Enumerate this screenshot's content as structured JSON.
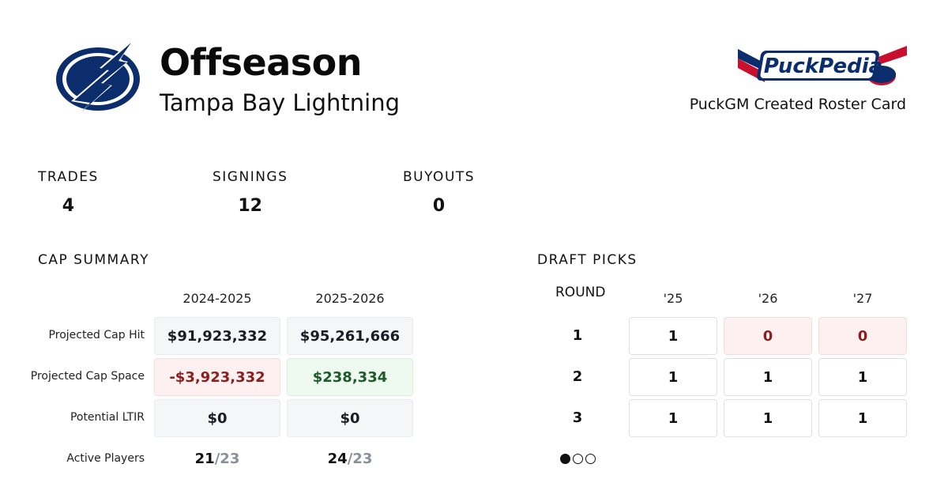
{
  "header": {
    "title": "Offseason",
    "team": "Tampa Bay Lightning",
    "brand_caption": "PuckGM Created Roster Card",
    "brand_logo_text": "PuckPedia",
    "team_logo_icon": "lightning-bolt-logo-icon",
    "team_color": "#0b2d6c",
    "brand_red": "#c8102e"
  },
  "stats": {
    "trades_label": "TRADES",
    "trades_value": "4",
    "signings_label": "SIGNINGS",
    "signings_value": "12",
    "buyouts_label": "BUYOUTS",
    "buyouts_value": "0"
  },
  "cap_summary": {
    "title": "CAP SUMMARY",
    "seasons": [
      "2024-2025",
      "2025-2026"
    ],
    "rows": [
      {
        "label": "Projected Cap Hit",
        "values": [
          "$91,923,332",
          "$95,261,666"
        ],
        "status": [
          "neutral",
          "neutral"
        ]
      },
      {
        "label": "Projected Cap Space",
        "values": [
          "-$3,923,332",
          "$238,334"
        ],
        "status": [
          "negative",
          "positive"
        ]
      },
      {
        "label": "Potential LTIR",
        "values": [
          "$0",
          "$0"
        ],
        "status": [
          "neutral",
          "neutral"
        ]
      }
    ],
    "active_players": {
      "label": "Active Players",
      "values": [
        {
          "count": "21",
          "max": "/23"
        },
        {
          "count": "24",
          "max": "/23"
        }
      ]
    }
  },
  "draft_picks": {
    "title": "DRAFT PICKS",
    "round_header": "ROUND",
    "years": [
      "'25",
      "'26",
      "'27"
    ],
    "rounds": [
      {
        "round": "1",
        "picks": [
          "1",
          "0",
          "0"
        ]
      },
      {
        "round": "2",
        "picks": [
          "1",
          "1",
          "1"
        ]
      },
      {
        "round": "3",
        "picks": [
          "1",
          "1",
          "1"
        ]
      }
    ]
  },
  "pagination": {
    "pages": 3,
    "current": 1
  }
}
